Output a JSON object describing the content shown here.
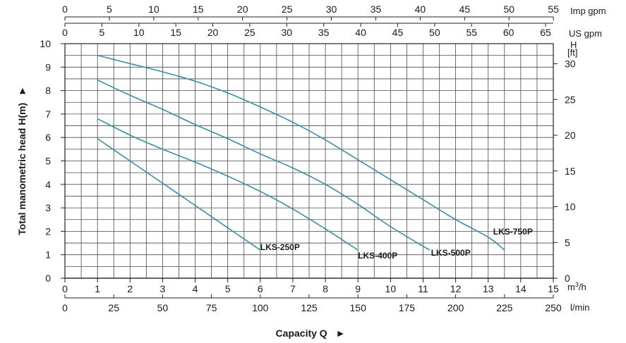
{
  "chart_data": {
    "type": "line",
    "title": "",
    "xlabel": "Capacity Q",
    "ylabel": "Total manometric head H(m)",
    "xlabel_arrow": "►",
    "ylabel_arrow": "►",
    "grid": true,
    "line_color": "#3a8fa3",
    "x_axis": {
      "unit": "m3/h",
      "unit_base": "m",
      "unit_sup": "3",
      "unit_rest": "/h",
      "range": [
        0,
        15
      ],
      "ticks": [
        "0",
        "1",
        "2",
        "3",
        "4",
        "5",
        "6",
        "7",
        "8",
        "9",
        "10",
        "11",
        "12",
        "13",
        "14",
        "15"
      ]
    },
    "x_axis_lmin": {
      "unit": "l/min",
      "ticks": [
        "0",
        "25",
        "50",
        "75",
        "100",
        "125",
        "150",
        "175",
        "200",
        "225",
        "250"
      ]
    },
    "x_axis_usgpm": {
      "unit": "US gpm",
      "ticks": [
        "0",
        "5",
        "10",
        "15",
        "20",
        "25",
        "30",
        "35",
        "40",
        "45",
        "50",
        "55",
        "60",
        "65"
      ]
    },
    "x_axis_impgpm": {
      "unit": "Imp gpm",
      "ticks": [
        "0",
        "5",
        "10",
        "15",
        "20",
        "25",
        "30",
        "35",
        "40",
        "45",
        "50",
        "55"
      ]
    },
    "y_axis": {
      "unit": "",
      "range": [
        0,
        10
      ],
      "ticks": [
        "0",
        "1",
        "2",
        "3",
        "4",
        "5",
        "6",
        "7",
        "8",
        "9",
        "10"
      ]
    },
    "y_axis_ft": {
      "unit_top": "H",
      "unit_bottom": "[ft]",
      "ticks": [
        "0",
        "5",
        "10",
        "15",
        "20",
        "25",
        "30"
      ]
    },
    "series": [
      {
        "name": "LKS-250P",
        "points": [
          [
            1.0,
            5.95
          ],
          [
            2.0,
            5.0
          ],
          [
            3.0,
            4.05
          ],
          [
            4.0,
            3.1
          ],
          [
            5.0,
            2.15
          ],
          [
            6.0,
            1.2
          ]
        ]
      },
      {
        "name": "LKS-400P",
        "points": [
          [
            1.0,
            6.8
          ],
          [
            2.0,
            6.1
          ],
          [
            3.0,
            5.5
          ],
          [
            4.0,
            4.95
          ],
          [
            5.0,
            4.35
          ],
          [
            6.0,
            3.7
          ],
          [
            7.0,
            2.95
          ],
          [
            8.0,
            2.1
          ],
          [
            9.0,
            1.2
          ]
        ]
      },
      {
        "name": "LKS-500P",
        "points": [
          [
            1.0,
            8.45
          ],
          [
            2.0,
            7.8
          ],
          [
            3.0,
            7.2
          ],
          [
            4.0,
            6.55
          ],
          [
            5.0,
            5.95
          ],
          [
            6.0,
            5.3
          ],
          [
            7.0,
            4.7
          ],
          [
            8.0,
            4.0
          ],
          [
            9.0,
            3.15
          ],
          [
            10.0,
            2.2
          ],
          [
            11.2,
            1.2
          ]
        ]
      },
      {
        "name": "LKS-750P",
        "points": [
          [
            1.0,
            9.5
          ],
          [
            2.0,
            9.15
          ],
          [
            3.0,
            8.8
          ],
          [
            4.0,
            8.4
          ],
          [
            5.0,
            7.9
          ],
          [
            6.0,
            7.3
          ],
          [
            7.0,
            6.65
          ],
          [
            8.0,
            5.9
          ],
          [
            9.0,
            5.05
          ],
          [
            10.0,
            4.2
          ],
          [
            11.0,
            3.35
          ],
          [
            12.0,
            2.5
          ],
          [
            13.0,
            1.75
          ],
          [
            13.5,
            1.2
          ]
        ]
      }
    ]
  }
}
